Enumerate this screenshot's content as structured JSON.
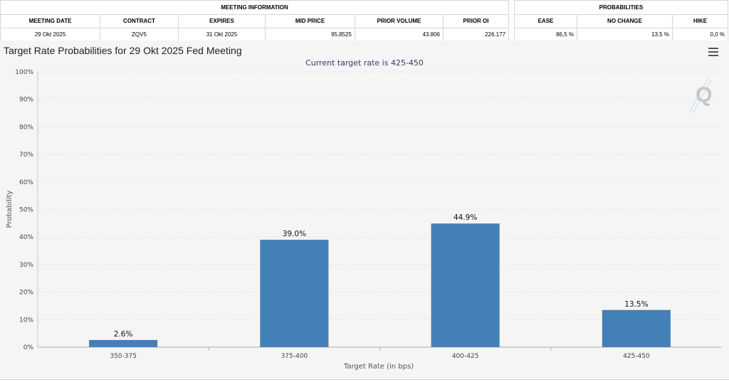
{
  "meeting_info": {
    "header": "MEETING INFORMATION",
    "columns": [
      "MEETING DATE",
      "CONTRACT",
      "EXPIRES",
      "MID PRICE",
      "PRIOR VOLUME",
      "PRIOR OI"
    ],
    "row": {
      "meeting_date": "29 Okt 2025",
      "contract": "ZQV5",
      "expires": "31 Okt 2025",
      "mid_price": "95,8525",
      "prior_volume": "43.806",
      "prior_oi": "226.177"
    }
  },
  "probabilities": {
    "header": "PROBABILITIES",
    "columns": [
      "EASE",
      "NO CHANGE",
      "HIKE"
    ],
    "row": {
      "ease": "86,5 %",
      "no_change": "13,5 %",
      "hike": "0,0 %"
    }
  },
  "chart_data": {
    "type": "bar",
    "title": "Target Rate Probabilities for 29 Okt 2025 Fed Meeting",
    "subtitle": "Current target rate is 425-450",
    "xlabel": "Target Rate (in bps)",
    "ylabel": "Probability",
    "categories": [
      "350-375",
      "375-400",
      "400-425",
      "425-450"
    ],
    "values": [
      2.6,
      39.0,
      44.9,
      13.5
    ],
    "data_labels": [
      "2.6%",
      "39.0%",
      "44.9%",
      "13.5%"
    ],
    "y_ticks": [
      "0%",
      "10%",
      "20%",
      "30%",
      "40%",
      "50%",
      "60%",
      "70%",
      "80%",
      "90%",
      "100%"
    ],
    "ylim": [
      0,
      100
    ],
    "bar_color": "#4480b8",
    "grid": true,
    "legend": "none"
  },
  "icons": {
    "menu": "hamburger-menu-icon",
    "watermark": "q-logo-icon"
  }
}
